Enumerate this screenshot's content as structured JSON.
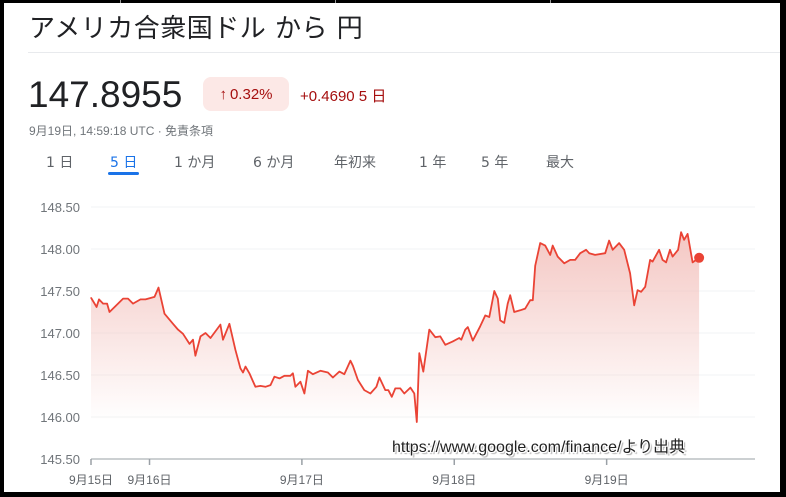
{
  "header": {
    "title": "アメリカ合衆国ドル から 円"
  },
  "quote": {
    "price": "147.8955",
    "change_pct": "0.32%",
    "change_arrow": "up-arrow-icon",
    "change_abs": "+0.4690 5 日",
    "timestamp": "9月19日, 14:59:18 UTC · 免責条項"
  },
  "tabs": [
    {
      "label": "1 日"
    },
    {
      "label": "5 日",
      "active": true
    },
    {
      "label": "1 か月"
    },
    {
      "label": "6 か月"
    },
    {
      "label": "年初来"
    },
    {
      "label": "1 年"
    },
    {
      "label": "5 年"
    },
    {
      "label": "最大"
    }
  ],
  "watermark": "https://www.google.com/finance/より出典",
  "colors": {
    "line": "#ea4335",
    "fill": "#f4c7c3",
    "up": "#a50e0e",
    "badge_bg": "#fce8e6",
    "accent": "#1a73e8",
    "grid": "#f1f3f4",
    "axis_text": "#70757a"
  },
  "chart_data": {
    "type": "area",
    "title": "",
    "xlabel": "",
    "ylabel": "",
    "ylim": [
      145.5,
      148.5
    ],
    "yticks": [
      "148.50",
      "148.00",
      "147.50",
      "147.00",
      "146.50",
      "146.00",
      "145.50"
    ],
    "xticks": [
      {
        "t": "09-15 14:47",
        "label": "9月15日"
      },
      {
        "t": "09-16 00:00",
        "label": "9月16日"
      },
      {
        "t": "09-17 00:00",
        "label": "9月17日"
      },
      {
        "t": "09-18 00:00",
        "label": "9月18日"
      },
      {
        "t": "09-19 00:00",
        "label": "9月19日"
      }
    ],
    "xlim": [
      "09-15 14:47",
      "09-19 23:22"
    ],
    "grid": true,
    "points": [
      [
        "09-15 14:47",
        147.42
      ],
      [
        "09-15 15:40",
        147.31
      ],
      [
        "09-15 16:03",
        147.4
      ],
      [
        "09-15 16:41",
        147.35
      ],
      [
        "09-15 17:19",
        147.35
      ],
      [
        "09-15 17:42",
        147.25
      ],
      [
        "09-15 18:39",
        147.32
      ],
      [
        "09-15 19:50",
        147.41
      ],
      [
        "09-15 20:37",
        147.41
      ],
      [
        "09-15 21:24",
        147.35
      ],
      [
        "09-15 22:35",
        147.4
      ],
      [
        "09-15 23:22",
        147.4
      ],
      [
        "09-16 00:47",
        147.43
      ],
      [
        "09-16 01:25",
        147.54
      ],
      [
        "09-16 02:22",
        147.23
      ],
      [
        "09-16 03:42",
        147.11
      ],
      [
        "09-16 04:29",
        147.04
      ],
      [
        "09-16 05:16",
        146.99
      ],
      [
        "09-16 06:18",
        146.87
      ],
      [
        "09-16 06:51",
        146.92
      ],
      [
        "09-16 07:14",
        146.73
      ],
      [
        "09-16 08:02",
        146.96
      ],
      [
        "09-16 08:49",
        147.0
      ],
      [
        "09-16 09:36",
        146.94
      ],
      [
        "09-16 11:10",
        147.1
      ],
      [
        "09-16 11:34",
        146.92
      ],
      [
        "09-16 12:35",
        147.11
      ],
      [
        "09-16 13:32",
        146.8
      ],
      [
        "09-16 14:19",
        146.58
      ],
      [
        "09-16 14:43",
        146.53
      ],
      [
        "09-16 15:07",
        146.6
      ],
      [
        "09-16 15:44",
        146.52
      ],
      [
        "09-16 16:41",
        146.36
      ],
      [
        "09-16 17:28",
        146.37
      ],
      [
        "09-16 18:15",
        146.36
      ],
      [
        "09-16 19:03",
        146.38
      ],
      [
        "09-16 19:40",
        146.48
      ],
      [
        "09-16 20:28",
        146.46
      ],
      [
        "09-16 21:15",
        146.49
      ],
      [
        "09-16 22:11",
        146.49
      ],
      [
        "09-16 22:35",
        146.52
      ],
      [
        "09-16 22:59",
        146.36
      ],
      [
        "09-16 23:46",
        146.42
      ],
      [
        "09-17 00:24",
        146.28
      ],
      [
        "09-17 00:57",
        146.55
      ],
      [
        "09-17 01:44",
        146.51
      ],
      [
        "09-17 02:55",
        146.55
      ],
      [
        "09-17 04:06",
        146.53
      ],
      [
        "09-17 04:53",
        146.47
      ],
      [
        "09-17 05:54",
        146.54
      ],
      [
        "09-17 06:41",
        146.51
      ],
      [
        "09-17 07:38",
        146.67
      ],
      [
        "09-17 08:02",
        146.61
      ],
      [
        "09-17 08:49",
        146.44
      ],
      [
        "09-17 09:50",
        146.32
      ],
      [
        "09-17 10:47",
        146.28
      ],
      [
        "09-17 11:44",
        146.36
      ],
      [
        "09-17 12:12",
        146.47
      ],
      [
        "09-17 13:08",
        146.32
      ],
      [
        "09-17 13:37",
        146.32
      ],
      [
        "09-17 14:10",
        146.24
      ],
      [
        "09-17 14:43",
        146.34
      ],
      [
        "09-17 15:30",
        146.34
      ],
      [
        "09-17 16:08",
        146.28
      ],
      [
        "09-17 17:05",
        146.35
      ],
      [
        "09-17 17:42",
        146.28
      ],
      [
        "09-17 18:06",
        145.94
      ],
      [
        "09-17 18:30",
        146.76
      ],
      [
        "09-17 19:07",
        146.54
      ],
      [
        "09-17 20:04",
        147.04
      ],
      [
        "09-17 21:01",
        146.95
      ],
      [
        "09-17 21:48",
        146.96
      ],
      [
        "09-17 22:35",
        146.86
      ],
      [
        "09-17 23:46",
        146.9
      ],
      [
        "09-18 00:47",
        146.94
      ],
      [
        "09-18 01:06",
        146.92
      ],
      [
        "09-18 01:44",
        147.04
      ],
      [
        "09-18 02:08",
        147.07
      ],
      [
        "09-18 02:55",
        146.91
      ],
      [
        "09-18 04:05",
        147.08
      ],
      [
        "09-18 04:53",
        147.21
      ],
      [
        "09-18 05:31",
        147.19
      ],
      [
        "09-18 06:18",
        147.5
      ],
      [
        "09-18 06:51",
        147.41
      ],
      [
        "09-18 07:14",
        147.15
      ],
      [
        "09-18 07:52",
        147.12
      ],
      [
        "09-18 08:25",
        147.35
      ],
      [
        "09-18 08:49",
        147.45
      ],
      [
        "09-18 09:26",
        147.25
      ],
      [
        "09-18 10:23",
        147.27
      ],
      [
        "09-18 11:10",
        147.29
      ],
      [
        "09-18 11:58",
        147.39
      ],
      [
        "09-18 12:22",
        147.39
      ],
      [
        "09-18 12:45",
        147.8
      ],
      [
        "09-18 13:32",
        148.07
      ],
      [
        "09-18 14:19",
        148.04
      ],
      [
        "09-18 15:07",
        147.93
      ],
      [
        "09-18 15:30",
        148.04
      ],
      [
        "09-18 16:17",
        147.91
      ],
      [
        "09-18 17:19",
        147.83
      ],
      [
        "09-18 18:16",
        147.87
      ],
      [
        "09-18 19:02",
        147.87
      ],
      [
        "09-18 19:50",
        147.95
      ],
      [
        "09-18 20:46",
        147.99
      ],
      [
        "09-18 21:15",
        147.95
      ],
      [
        "09-18 22:11",
        147.93
      ],
      [
        "09-18 23:46",
        147.95
      ],
      [
        "09-19 00:23",
        148.1
      ],
      [
        "09-19 00:57",
        147.99
      ],
      [
        "09-19 01:58",
        148.07
      ],
      [
        "09-19 02:46",
        147.99
      ],
      [
        "09-19 03:42",
        147.71
      ],
      [
        "09-19 04:20",
        147.33
      ],
      [
        "09-19 04:53",
        147.51
      ],
      [
        "09-19 05:26",
        147.49
      ],
      [
        "09-19 06:04",
        147.55
      ],
      [
        "09-19 06:51",
        147.87
      ],
      [
        "09-19 07:14",
        147.85
      ],
      [
        "09-19 08:16",
        147.99
      ],
      [
        "09-19 08:49",
        147.87
      ],
      [
        "09-19 09:22",
        147.84
      ],
      [
        "09-19 09:59",
        147.99
      ],
      [
        "09-19 10:23",
        147.91
      ],
      [
        "09-19 11:15",
        147.99
      ],
      [
        "09-19 11:44",
        148.2
      ],
      [
        "09-19 12:12",
        148.11
      ],
      [
        "09-19 12:45",
        148.18
      ],
      [
        "09-19 13:32",
        147.84
      ],
      [
        "09-19 14:34",
        147.8955
      ]
    ]
  }
}
